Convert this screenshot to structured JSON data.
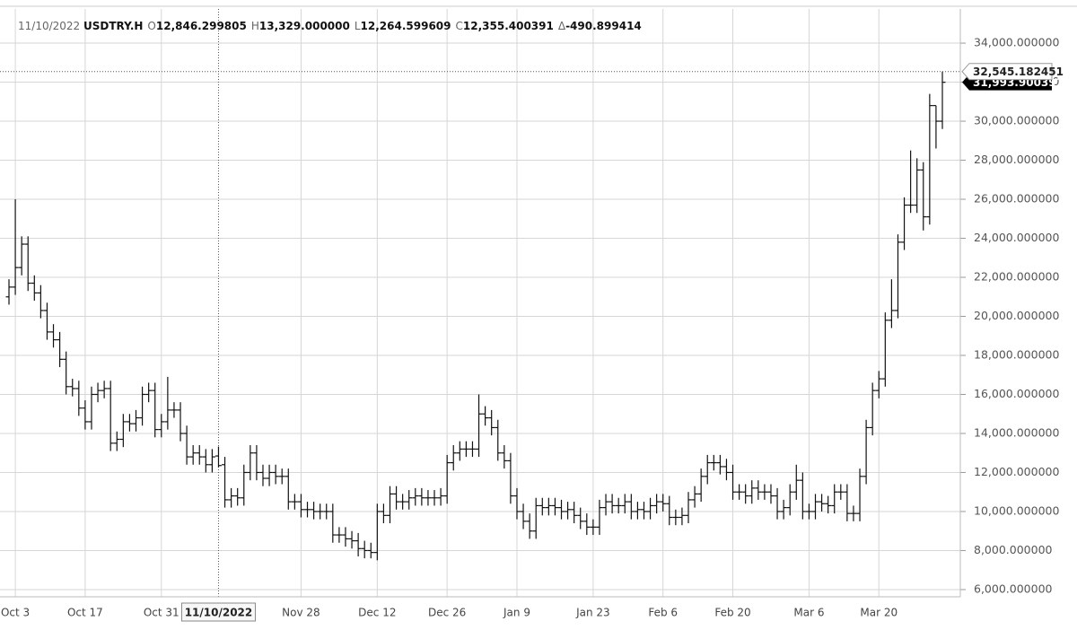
{
  "chart_data": {
    "type": "ohlc",
    "legend": {
      "date": "11/10/2022",
      "symbol": "USDTRY.H",
      "items": [
        {
          "key": "O",
          "value": "12,846.299805"
        },
        {
          "key": "H",
          "value": "13,329.000000"
        },
        {
          "key": "L",
          "value": "12,264.599609"
        },
        {
          "key": "C",
          "value": "12,355.400391"
        },
        {
          "key": "Δ",
          "value": "-490.899414"
        }
      ]
    },
    "categories": [
      null,
      "Oct 3",
      null,
      null,
      null,
      null,
      null,
      null,
      null,
      null,
      null,
      null,
      "Oct 17",
      null,
      null,
      null,
      null,
      null,
      null,
      null,
      null,
      null,
      null,
      null,
      "Oct 31",
      null,
      null,
      null,
      null,
      null,
      null,
      null,
      null,
      "11/10/2022",
      null,
      null,
      null,
      null,
      null,
      null,
      null,
      null,
      null,
      null,
      null,
      null,
      "Nov 28",
      null,
      null,
      null,
      null,
      null,
      null,
      null,
      null,
      null,
      null,
      null,
      "Dec 12",
      null,
      null,
      null,
      null,
      null,
      null,
      null,
      null,
      null,
      null,
      "Dec 26",
      null,
      null,
      null,
      null,
      null,
      null,
      null,
      null,
      null,
      null,
      "Jan 9",
      null,
      null,
      null,
      null,
      null,
      null,
      null,
      null,
      null,
      null,
      null,
      "Jan 23",
      null,
      null,
      null,
      null,
      null,
      null,
      null,
      null,
      null,
      null,
      "Feb 6",
      null,
      null,
      null,
      null,
      null,
      null,
      null,
      null,
      null,
      null,
      "Feb 20",
      null,
      null,
      null,
      null,
      null,
      null,
      null,
      null,
      null,
      null,
      null,
      "Mar 6",
      null,
      null,
      null,
      null,
      null,
      null,
      null,
      null,
      null,
      null,
      "Mar 20",
      null,
      null,
      null,
      null,
      null,
      null,
      null,
      null,
      null,
      null
    ],
    "open": [
      21000,
      21500,
      22500,
      23700,
      21700,
      21200,
      20300,
      19200,
      18800,
      17800,
      16400,
      16300,
      15300,
      14600,
      16000,
      16200,
      16300,
      13500,
      13700,
      14600,
      14500,
      14800,
      16000,
      16200,
      14200,
      14600,
      15200,
      15200,
      14000,
      12800,
      13000,
      12800,
      12400,
      12846.299805,
      12400,
      10600,
      10800,
      10700,
      12000,
      13000,
      12000,
      11700,
      12000,
      11800,
      11800,
      10500,
      10500,
      10100,
      10100,
      10000,
      10000,
      10000,
      8800,
      8800,
      8600,
      8500,
      8100,
      8000,
      7900,
      10000,
      9800,
      10900,
      10500,
      10500,
      10700,
      10800,
      10700,
      10700,
      10700,
      10800,
      12500,
      13000,
      13200,
      13200,
      13200,
      15000,
      14800,
      14300,
      13000,
      12600,
      10800,
      10000,
      9500,
      9000,
      10300,
      10200,
      10300,
      10200,
      10000,
      10100,
      9800,
      9500,
      9200,
      9200,
      10200,
      10500,
      10300,
      10300,
      10500,
      10000,
      10100,
      10000,
      10300,
      10500,
      10400,
      9700,
      9700,
      9800,
      10600,
      10900,
      11800,
      12500,
      12500,
      12300,
      12000,
      11000,
      11000,
      10800,
      11200,
      11000,
      11000,
      10800,
      10000,
      10200,
      11000,
      11600,
      10000,
      10000,
      10500,
      10400,
      10300,
      11000,
      11000,
      9900,
      9900,
      11800,
      14300,
      16200,
      16800,
      19800,
      20300,
      23800,
      25700,
      25700,
      27500,
      25100,
      30800,
      30000
    ],
    "high": [
      21900,
      26000,
      24100,
      24100,
      22100,
      21600,
      20700,
      19600,
      19200,
      18200,
      16800,
      16700,
      15700,
      16400,
      16600,
      16700,
      16700,
      14100,
      15000,
      15000,
      15200,
      16400,
      16600,
      16600,
      15000,
      16900,
      15600,
      15600,
      14400,
      13400,
      13400,
      13200,
      13200,
      13329,
      12800,
      11200,
      11200,
      12400,
      13400,
      13400,
      12400,
      12400,
      12400,
      12200,
      12200,
      10900,
      10900,
      10500,
      10500,
      10400,
      10400,
      10400,
      9200,
      9200,
      9000,
      8900,
      8500,
      8400,
      10400,
      10400,
      11300,
      11300,
      10900,
      11100,
      11200,
      11200,
      11100,
      11100,
      11200,
      12900,
      13400,
      13600,
      13600,
      13600,
      16000,
      15400,
      15200,
      14700,
      13400,
      13000,
      11200,
      10400,
      9900,
      10700,
      10700,
      10700,
      10700,
      10600,
      10500,
      10500,
      10200,
      9900,
      9600,
      10600,
      10900,
      10900,
      10700,
      10900,
      10900,
      10500,
      10500,
      10700,
      10900,
      10900,
      10800,
      10100,
      10200,
      11000,
      11300,
      12200,
      12900,
      12900,
      12900,
      12700,
      12400,
      11400,
      11400,
      11600,
      11600,
      11400,
      11400,
      11200,
      10600,
      11400,
      12400,
      12000,
      10400,
      10900,
      10900,
      10800,
      11400,
      11400,
      11400,
      10300,
      12200,
      14700,
      16600,
      17200,
      20200,
      21900,
      24200,
      26100,
      28500,
      28100,
      27900,
      31400,
      30800,
      32545.182451
    ],
    "low": [
      20600,
      21100,
      22100,
      21300,
      20800,
      19900,
      18800,
      18400,
      17400,
      16000,
      15900,
      14900,
      14200,
      14200,
      15600,
      15800,
      13100,
      13100,
      13300,
      14100,
      14100,
      14400,
      15600,
      13800,
      13800,
      14200,
      14800,
      13600,
      12400,
      12400,
      12400,
      12000,
      12000,
      12264.599609,
      10200,
      10200,
      10300,
      10300,
      11600,
      11600,
      11300,
      11300,
      11400,
      11400,
      10100,
      10100,
      9700,
      9700,
      9600,
      9600,
      9600,
      8400,
      8400,
      8200,
      8100,
      7700,
      7600,
      7600,
      7500,
      9400,
      9400,
      10100,
      10100,
      10100,
      10300,
      10300,
      10300,
      10300,
      10300,
      10400,
      12100,
      12600,
      12800,
      12800,
      12800,
      14400,
      13900,
      12600,
      12200,
      10400,
      9600,
      9100,
      8600,
      8600,
      9800,
      9800,
      9800,
      9600,
      9600,
      9400,
      9100,
      8800,
      8800,
      8800,
      9800,
      9900,
      9900,
      9900,
      9600,
      9600,
      9600,
      9600,
      9900,
      10000,
      9300,
      9300,
      9300,
      9400,
      10200,
      10500,
      11400,
      12100,
      11900,
      11600,
      10600,
      10600,
      10400,
      10400,
      10600,
      10600,
      10400,
      9600,
      9600,
      9800,
      10600,
      9600,
      9600,
      9600,
      10000,
      9900,
      9900,
      10600,
      9500,
      9500,
      9500,
      11400,
      13900,
      15800,
      16400,
      19400,
      19900,
      23400,
      25300,
      25300,
      24400,
      24700,
      28600,
      29600
    ],
    "close": [
      21500,
      22500,
      23700,
      21700,
      21200,
      20300,
      19200,
      18800,
      17800,
      16400,
      16300,
      15300,
      14600,
      16000,
      16200,
      16300,
      13500,
      13700,
      14600,
      14500,
      14800,
      16000,
      16200,
      14200,
      14600,
      15200,
      15200,
      14000,
      12800,
      13000,
      12800,
      12400,
      12800,
      12355.400391,
      10600,
      10800,
      10700,
      12000,
      13000,
      12000,
      11700,
      12000,
      11800,
      11800,
      10500,
      10500,
      10100,
      10100,
      10000,
      10000,
      10000,
      8800,
      8800,
      8600,
      8500,
      8100,
      8000,
      7900,
      10000,
      9800,
      10900,
      10500,
      10500,
      10700,
      10800,
      10700,
      10700,
      10700,
      10800,
      12500,
      13000,
      13200,
      13200,
      13200,
      15000,
      14800,
      14300,
      13000,
      12600,
      10800,
      10000,
      9500,
      9000,
      10300,
      10200,
      10300,
      10200,
      10000,
      10100,
      9800,
      9500,
      9200,
      9200,
      10200,
      10500,
      10300,
      10300,
      10500,
      10000,
      10100,
      10000,
      10300,
      10500,
      10400,
      9700,
      9700,
      9800,
      10600,
      10900,
      11800,
      12500,
      12500,
      12300,
      12000,
      11000,
      11000,
      10800,
      11200,
      11000,
      11000,
      10800,
      10000,
      10200,
      11000,
      11600,
      10000,
      10000,
      10500,
      10400,
      10300,
      11000,
      11000,
      9900,
      9900,
      11800,
      14300,
      16200,
      16800,
      19800,
      20300,
      23800,
      25700,
      25700,
      27500,
      25100,
      30800,
      30000,
      31993.900391
    ],
    "color": "#111111",
    "ylim": [
      5630,
      35750
    ],
    "yticks": [
      {
        "value": 6000,
        "label": "6,000.000000"
      },
      {
        "value": 8000,
        "label": "8,000.000000"
      },
      {
        "value": 10000,
        "label": "10,000.000000"
      },
      {
        "value": 12000,
        "label": "12,000.000000"
      },
      {
        "value": 14000,
        "label": "14,000.000000"
      },
      {
        "value": 16000,
        "label": "16,000.000000"
      },
      {
        "value": 18000,
        "label": "18,000.000000"
      },
      {
        "value": 20000,
        "label": "20,000.000000"
      },
      {
        "value": 22000,
        "label": "22,000.000000"
      },
      {
        "value": 24000,
        "label": "24,000.000000"
      },
      {
        "value": 26000,
        "label": "26,000.000000"
      },
      {
        "value": 28000,
        "label": "28,000.000000"
      },
      {
        "value": 30000,
        "label": "30,000.000000"
      },
      {
        "value": 32000,
        "label": "32,000.000000"
      },
      {
        "value": 34000,
        "label": "34,000.000000"
      }
    ],
    "price_labels": [
      {
        "value": 32545.182451,
        "label": "32,545.182451"
      },
      {
        "value": 31993.900391,
        "label": "31,993.900391"
      }
    ],
    "grid": true
  }
}
